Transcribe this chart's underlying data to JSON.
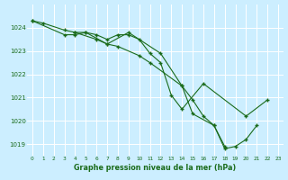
{
  "background_color": "#cceeff",
  "grid_color": "#ffffff",
  "line_color": "#1a6b1a",
  "xlabel": "Graphe pression niveau de la mer (hPa)",
  "xlabel_color": "#1a6b1a",
  "ylabel_color": "#1a6b1a",
  "xlim": [
    -0.5,
    23.5
  ],
  "ylim": [
    1018.5,
    1025.0
  ],
  "yticks": [
    1019,
    1020,
    1021,
    1022,
    1023,
    1024
  ],
  "xticks": [
    0,
    1,
    2,
    3,
    4,
    5,
    6,
    7,
    8,
    9,
    10,
    11,
    12,
    13,
    14,
    15,
    16,
    17,
    18,
    19,
    20,
    21,
    22,
    23
  ],
  "line1_x": [
    0,
    1,
    3,
    4,
    5,
    7,
    8,
    10,
    11,
    14,
    15,
    17,
    18
  ],
  "line1_y": [
    1024.3,
    1024.2,
    1023.9,
    1023.8,
    1023.8,
    1023.3,
    1023.2,
    1022.8,
    1022.5,
    1021.5,
    1020.3,
    1019.8,
    1018.9
  ],
  "line2_x": [
    0,
    3,
    4,
    5,
    6,
    7,
    8,
    9,
    10,
    11,
    12,
    13,
    14,
    16,
    20,
    22
  ],
  "line2_y": [
    1024.3,
    1023.7,
    1023.7,
    1023.8,
    1023.7,
    1023.5,
    1023.7,
    1023.7,
    1023.5,
    1022.9,
    1022.5,
    1021.1,
    1020.5,
    1021.6,
    1020.2,
    1020.9
  ],
  "line3_x": [
    4,
    6,
    7,
    9,
    12,
    14,
    15,
    16,
    17,
    18,
    19,
    20,
    21
  ],
  "line3_y": [
    1023.8,
    1023.5,
    1023.3,
    1023.8,
    1022.9,
    1021.5,
    1020.9,
    1020.2,
    1019.8,
    1018.8,
    1018.9,
    1019.2,
    1019.8
  ]
}
